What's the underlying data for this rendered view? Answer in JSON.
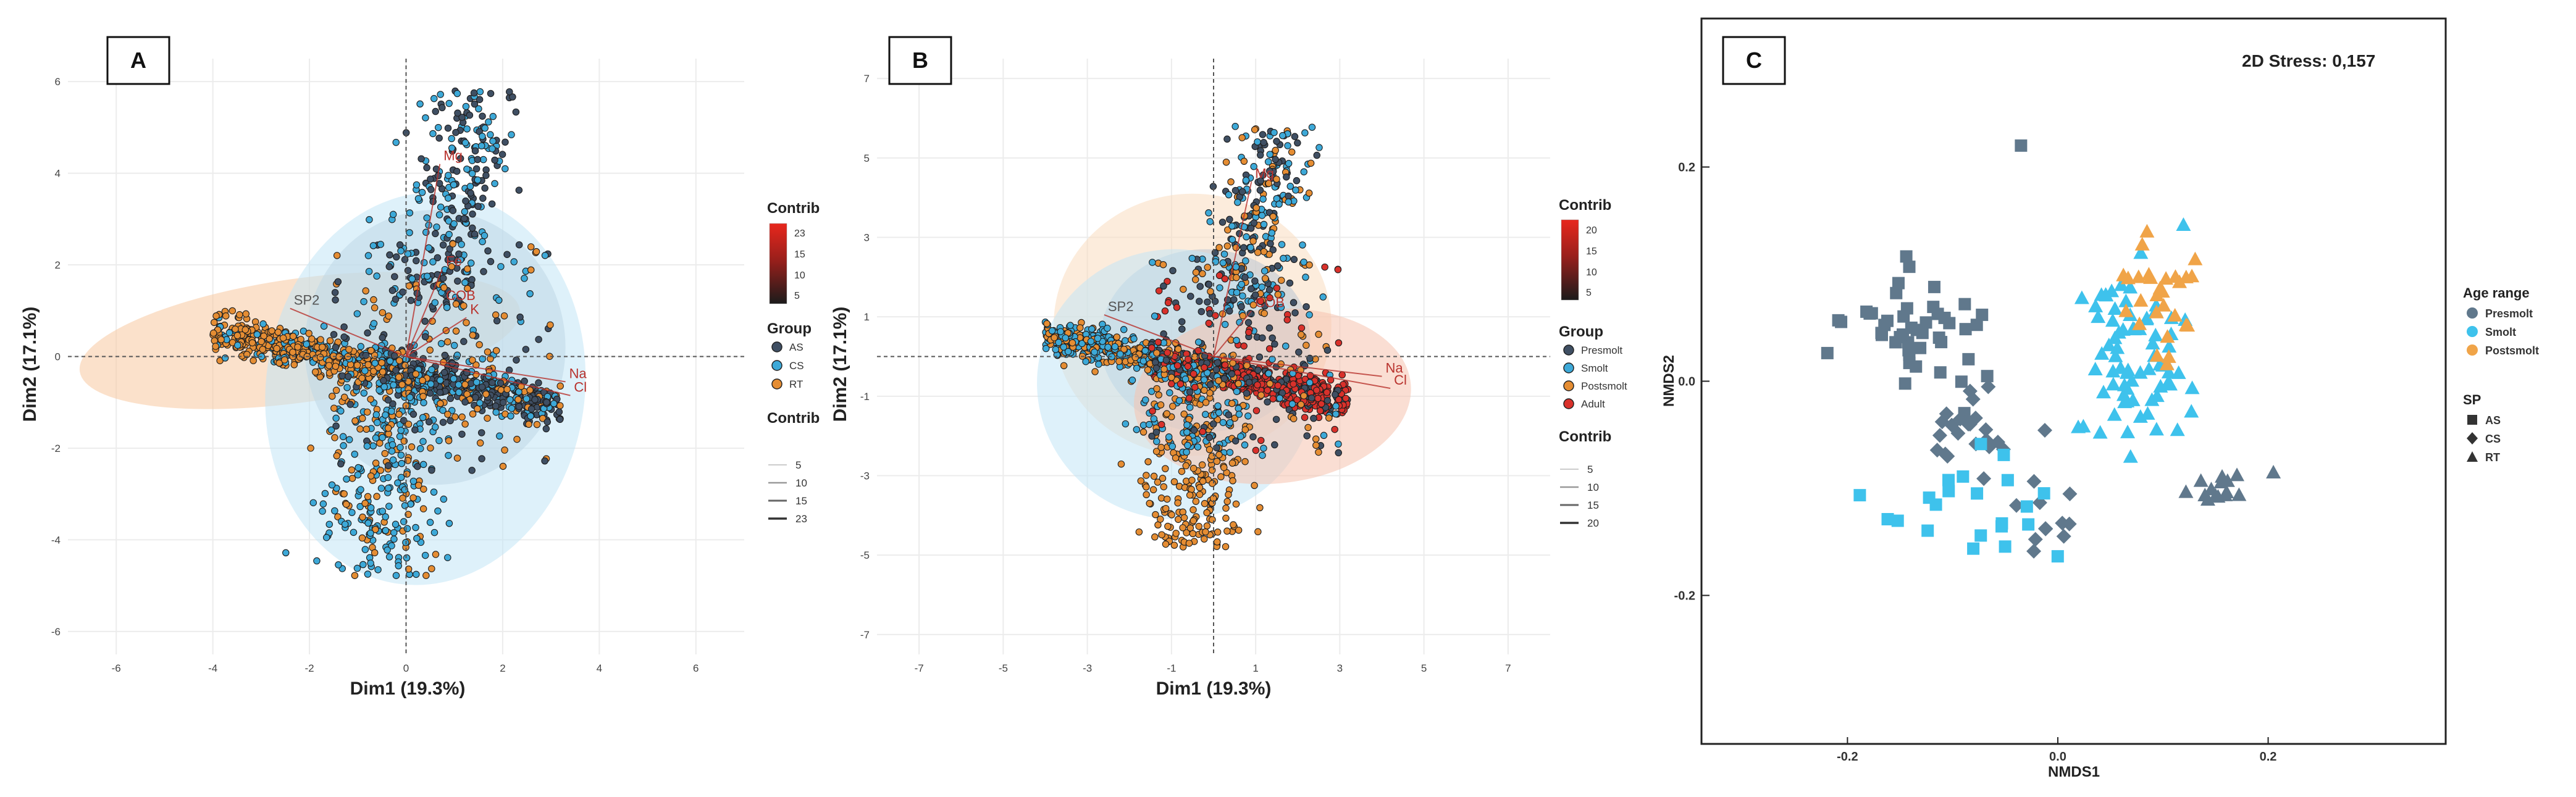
{
  "panels": [
    {
      "letter": "A",
      "chart_data": {
        "type": "scatter",
        "subtype": "pca-biplot",
        "xlabel": "Dim1 (19.3%)",
        "ylabel": "Dim2 (17.1%)",
        "xlim": [
          -7,
          7
        ],
        "ylim": [
          -6.5,
          6.5
        ],
        "xticks": [
          "-6",
          "-4",
          "-2",
          "0",
          "2",
          "4",
          "6"
        ],
        "xtick_values": [
          -6,
          -4,
          -2,
          0,
          2,
          4,
          6
        ],
        "yticks": [
          "-6",
          "-4",
          "-2",
          "0",
          "2",
          "4",
          "6"
        ],
        "ytick_values": [
          -6,
          -4,
          -2,
          0,
          2,
          4,
          6
        ],
        "groups": [
          {
            "name": "AS",
            "color": "#3f4f63"
          },
          {
            "name": "CS",
            "color": "#3da9d8"
          },
          {
            "name": "RT",
            "color": "#e58d33"
          }
        ],
        "ellipses": [
          {
            "group": "RT",
            "cx": -2.2,
            "cy": 0.35,
            "rx": 4.6,
            "ry": 1.35,
            "angle": -8,
            "color": "#f7c9a0"
          },
          {
            "group": "AS",
            "cx": 0.6,
            "cy": 0.2,
            "rx": 2.7,
            "ry": 3.0,
            "angle": 0,
            "color": "#b9c6d3"
          },
          {
            "group": "CS",
            "cx": 0.4,
            "cy": -0.7,
            "rx": 3.3,
            "ry": 4.3,
            "angle": 8,
            "color": "#c3e6f6"
          }
        ],
        "variables": [
          {
            "label": "SP2",
            "x": -2.4,
            "y": 1.05
          },
          {
            "label": "Fe",
            "x": 0.75,
            "y": 1.9
          },
          {
            "label": "COB",
            "x": 0.75,
            "y": 1.15
          },
          {
            "label": "K",
            "x": 1.25,
            "y": 0.85
          },
          {
            "label": "Na",
            "x": 3.3,
            "y": -0.55
          },
          {
            "label": "Cl",
            "x": 3.4,
            "y": -0.85
          },
          {
            "label": "Mg",
            "x": 0.7,
            "y": 4.2
          }
        ],
        "legend": {
          "contrib_title": "Contrib",
          "contrib_scale": [
            "23",
            "15",
            "10",
            "5"
          ],
          "group_title": "Group",
          "group_labels": [
            "AS",
            "CS",
            "RT"
          ],
          "contrib2_title": "Contrib",
          "contrib2_labels": [
            "5",
            "10",
            "15",
            "23"
          ],
          "placement": "right"
        }
      }
    },
    {
      "letter": "B",
      "chart_data": {
        "type": "scatter",
        "subtype": "pca-biplot",
        "xlabel": "Dim1 (19.3%)",
        "ylabel": "Dim2 (17.1%)",
        "xlim": [
          -8,
          8
        ],
        "ylim": [
          -7.5,
          7.5
        ],
        "xticks": [
          "-7",
          "-5",
          "-3",
          "-1",
          "1",
          "3",
          "5",
          "7"
        ],
        "xtick_values": [
          -7,
          -5,
          -3,
          -1,
          1,
          3,
          5,
          7
        ],
        "yticks": [
          "-7",
          "-5",
          "-3",
          "-1",
          "1",
          "3",
          "5",
          "7"
        ],
        "ytick_values": [
          -7,
          -5,
          -3,
          -1,
          1,
          3,
          5,
          7
        ],
        "groups": [
          {
            "name": "Presmolt",
            "color": "#3f4f63"
          },
          {
            "name": "Smolt",
            "color": "#3da9d8"
          },
          {
            "name": "Postsmolt",
            "color": "#e58d33"
          },
          {
            "name": "Adult",
            "color": "#d9312b"
          }
        ],
        "ellipses": [
          {
            "group": "Postsmolt",
            "cx": -0.5,
            "cy": 0.8,
            "rx": 3.3,
            "ry": 3.3,
            "angle": 0,
            "color": "#f9dcc0"
          },
          {
            "group": "Presmolt",
            "cx": -0.2,
            "cy": 0.4,
            "rx": 2.5,
            "ry": 2.3,
            "angle": 0,
            "color": "#b9c6d3"
          },
          {
            "group": "Smolt",
            "cx": -0.9,
            "cy": -0.7,
            "rx": 3.3,
            "ry": 3.4,
            "angle": 10,
            "color": "#c3e6f6"
          },
          {
            "group": "Adult",
            "cx": 1.4,
            "cy": -1.0,
            "rx": 3.3,
            "ry": 2.2,
            "angle": -5,
            "color": "#f5c2ae"
          }
        ],
        "variables": [
          {
            "label": "SP2",
            "x": -2.6,
            "y": 1.05
          },
          {
            "label": "COB",
            "x": 0.9,
            "y": 1.15
          },
          {
            "label": "Na",
            "x": 4.0,
            "y": -0.5
          },
          {
            "label": "Cl",
            "x": 4.2,
            "y": -0.8
          },
          {
            "label": "Mg",
            "x": 0.9,
            "y": 4.4
          }
        ],
        "legend": {
          "contrib_title": "Contrib",
          "contrib_scale": [
            "20",
            "15",
            "10",
            "5"
          ],
          "group_title": "Group",
          "group_labels": [
            "Presmolt",
            "Smolt",
            "Postsmolt",
            "Adult"
          ],
          "contrib2_title": "Contrib",
          "contrib2_labels": [
            "5",
            "10",
            "15",
            "20"
          ],
          "placement": "right"
        }
      }
    },
    {
      "letter": "C",
      "stress_label": "2D Stress: 0,157",
      "chart_data": {
        "type": "scatter",
        "subtype": "nmds",
        "xlabel": "NMDS1",
        "ylabel": "NMDS2",
        "xlim": [
          -0.33,
          0.36
        ],
        "ylim": [
          -0.33,
          0.33
        ],
        "xticks": [
          "-0.2",
          "0.0",
          "0.2"
        ],
        "xtick_values": [
          -0.2,
          0.0,
          0.2
        ],
        "yticks": [
          "-0.2",
          "0.0",
          "0.2"
        ],
        "ytick_values": [
          -0.2,
          0.0,
          0.2
        ],
        "clusters": [
          {
            "age": "Presmolt",
            "sp": "AS",
            "cx": -0.135,
            "cy": 0.045,
            "sx": 0.03,
            "sy": 0.035,
            "n": 46
          },
          {
            "age": "Presmolt",
            "sp": "AS",
            "cx": -0.035,
            "cy": 0.22,
            "sx": 0.0,
            "sy": 0.0,
            "n": 1
          },
          {
            "age": "Presmolt",
            "sp": "CS",
            "cx": -0.085,
            "cy": -0.04,
            "sx": 0.022,
            "sy": 0.018,
            "n": 22
          },
          {
            "age": "Presmolt",
            "sp": "CS",
            "cx": -0.015,
            "cy": -0.125,
            "sx": 0.022,
            "sy": 0.02,
            "n": 12
          },
          {
            "age": "Presmolt",
            "sp": "RT",
            "cx": 0.145,
            "cy": -0.1,
            "sx": 0.015,
            "sy": 0.01,
            "n": 14
          },
          {
            "age": "Presmolt",
            "sp": "RT",
            "cx": 0.205,
            "cy": -0.085,
            "sx": 0.0,
            "sy": 0.0,
            "n": 1
          },
          {
            "age": "Smolt",
            "sp": "AS",
            "cx": -0.075,
            "cy": -0.14,
            "sx": 0.04,
            "sy": 0.03,
            "n": 22
          },
          {
            "age": "Smolt",
            "sp": "RT",
            "cx": 0.075,
            "cy": 0.025,
            "sx": 0.025,
            "sy": 0.04,
            "n": 75
          },
          {
            "age": "Postsmolt",
            "sp": "RT",
            "cx": 0.095,
            "cy": 0.065,
            "sx": 0.018,
            "sy": 0.025,
            "n": 28
          }
        ],
        "legend": {
          "age_title": "Age range",
          "age_labels": [
            "Presmolt",
            "Smolt",
            "Postsmolt"
          ],
          "age_colors": [
            "#60788c",
            "#3ec2ec",
            "#f0a448"
          ],
          "sp_title": "SP",
          "sp_labels": [
            "AS",
            "CS",
            "RT"
          ],
          "sp_shapes": [
            "square",
            "diamond",
            "triangle"
          ],
          "placement": "right"
        }
      }
    }
  ]
}
